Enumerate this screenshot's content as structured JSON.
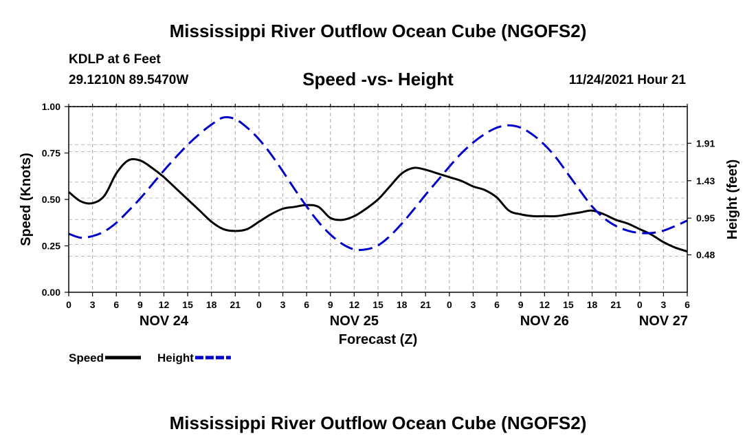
{
  "header": {
    "title": "Mississippi River Outflow Ocean Cube (NGOFS2)",
    "station_name": "KDLP at 6 Feet",
    "station_coords": "29.1210N  89.5470W",
    "subtitle": "Speed -vs- Height",
    "run_time": "11/24/2021 Hour 21"
  },
  "footer": {
    "title": "Mississippi River Outflow Ocean Cube (NGOFS2)"
  },
  "chart_data": {
    "type": "line",
    "title": "Speed -vs- Height",
    "xlabel": "Forecast (Z)",
    "ylabel_left": "Speed (Knots)",
    "ylabel_right": "Height (feet)",
    "x_range_hours": [
      0,
      78
    ],
    "x_tick_step_hours": 3,
    "x_tick_labels": [
      "0",
      "3",
      "6",
      "9",
      "12",
      "15",
      "18",
      "21",
      "0",
      "3",
      "6",
      "9",
      "12",
      "15",
      "18",
      "21",
      "0",
      "3",
      "6",
      "9",
      "12",
      "15",
      "18",
      "21",
      "0",
      "3",
      "6"
    ],
    "date_labels": [
      {
        "label": "NOV 24",
        "hour": 12
      },
      {
        "label": "NOV 25",
        "hour": 36
      },
      {
        "label": "NOV 26",
        "hour": 60
      },
      {
        "label": "NOV 27",
        "hour": 75
      }
    ],
    "y_left": {
      "range": [
        0,
        1.0
      ],
      "ticks": [
        "0.00",
        "0.25",
        "0.50",
        "0.75",
        "1.00"
      ],
      "tick_values": [
        0,
        0.25,
        0.5,
        0.75,
        1.0
      ]
    },
    "y_right": {
      "range": [
        0.0,
        2.38
      ],
      "ticks": [
        "0.48",
        "0.95",
        "1.43",
        "1.91"
      ],
      "tick_values": [
        0.48,
        0.95,
        1.43,
        1.91
      ]
    },
    "grid": true,
    "legend": {
      "position": "bottom-left"
    },
    "series": [
      {
        "name": "Speed",
        "axis": "left",
        "color": "#000000",
        "style": "solid",
        "x": [
          0,
          1.5,
          3,
          4.5,
          6,
          7.5,
          9,
          10.5,
          12,
          13.5,
          15,
          16.5,
          18,
          19.5,
          21,
          22.5,
          24,
          25.5,
          27,
          28.5,
          30,
          31.5,
          33,
          34.5,
          36,
          37.5,
          39,
          40.5,
          42,
          43.5,
          45,
          46.5,
          48,
          49.5,
          51,
          52.5,
          54,
          55.5,
          57,
          58.5,
          60,
          61.5,
          63,
          64.5,
          66,
          67.5,
          69,
          70.5,
          72,
          73.5,
          75,
          76.5,
          78
        ],
        "values": [
          0.54,
          0.49,
          0.48,
          0.52,
          0.64,
          0.71,
          0.71,
          0.67,
          0.62,
          0.56,
          0.5,
          0.44,
          0.38,
          0.34,
          0.33,
          0.34,
          0.38,
          0.42,
          0.45,
          0.46,
          0.47,
          0.46,
          0.4,
          0.39,
          0.41,
          0.45,
          0.5,
          0.57,
          0.64,
          0.67,
          0.66,
          0.64,
          0.62,
          0.6,
          0.57,
          0.55,
          0.51,
          0.44,
          0.42,
          0.41,
          0.41,
          0.41,
          0.42,
          0.43,
          0.44,
          0.42,
          0.39,
          0.37,
          0.34,
          0.31,
          0.27,
          0.24,
          0.22
        ]
      },
      {
        "name": "Height",
        "axis": "right",
        "color": "#0000cc",
        "style": "dashed",
        "x": [
          0,
          1.5,
          3,
          4.5,
          6,
          7.5,
          9,
          10.5,
          12,
          13.5,
          15,
          16.5,
          18,
          19.5,
          21,
          22.5,
          24,
          25.5,
          27,
          28.5,
          30,
          31.5,
          33,
          34.5,
          36,
          37.5,
          39,
          40.5,
          42,
          43.5,
          45,
          46.5,
          48,
          49.5,
          51,
          52.5,
          54,
          55.5,
          57,
          58.5,
          60,
          61.5,
          63,
          64.5,
          66,
          67.5,
          69,
          70.5,
          72,
          73.5,
          75,
          76.5,
          78
        ],
        "values": [
          0.75,
          0.7,
          0.72,
          0.78,
          0.89,
          1.04,
          1.2,
          1.38,
          1.56,
          1.73,
          1.89,
          2.03,
          2.15,
          2.24,
          2.22,
          2.11,
          1.96,
          1.77,
          1.55,
          1.32,
          1.1,
          0.9,
          0.74,
          0.62,
          0.55,
          0.55,
          0.6,
          0.72,
          0.88,
          1.06,
          1.25,
          1.43,
          1.61,
          1.78,
          1.92,
          2.03,
          2.11,
          2.14,
          2.11,
          2.02,
          1.89,
          1.72,
          1.51,
          1.3,
          1.1,
          0.95,
          0.85,
          0.79,
          0.76,
          0.76,
          0.79,
          0.85,
          0.92
        ]
      }
    ]
  }
}
